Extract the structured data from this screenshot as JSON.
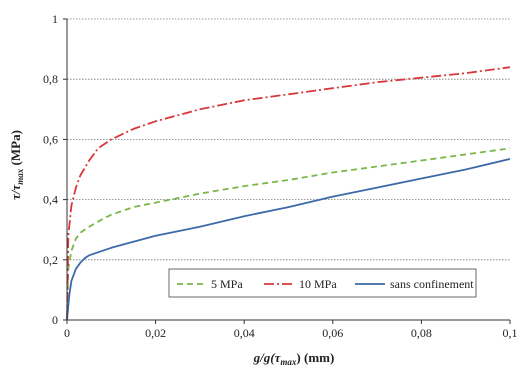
{
  "chart_data": {
    "type": "line",
    "xlabel_main": "g/g(τ",
    "xlabel_sub": "max",
    "xlabel_tail": ") (mm)",
    "ylabel_main": "τ/τ",
    "ylabel_sub": "max",
    "ylabel_tail": " (MPa)",
    "xlim": [
      0,
      0.1
    ],
    "ylim": [
      0,
      1
    ],
    "x_ticks": [
      {
        "v": 0,
        "label": "0"
      },
      {
        "v": 0.02,
        "label": "0,02"
      },
      {
        "v": 0.04,
        "label": "0,04"
      },
      {
        "v": 0.06,
        "label": "0,06"
      },
      {
        "v": 0.08,
        "label": "0,08"
      },
      {
        "v": 0.1,
        "label": "0,1"
      }
    ],
    "y_ticks": [
      {
        "v": 0,
        "label": "0"
      },
      {
        "v": 0.2,
        "label": "0,2"
      },
      {
        "v": 0.4,
        "label": "0,4"
      },
      {
        "v": 0.6,
        "label": "0,6"
      },
      {
        "v": 0.8,
        "label": "0,8"
      },
      {
        "v": 1,
        "label": "1"
      }
    ],
    "grid": "horizontal-dotted",
    "legend_position": "bottom-right-inside",
    "series": [
      {
        "name": "5 MPa",
        "color": "#7ab648",
        "dash": "dashed",
        "x": [
          0,
          0.0003,
          0.001,
          0.002,
          0.003,
          0.005,
          0.008,
          0.01,
          0.015,
          0.02,
          0.03,
          0.04,
          0.05,
          0.06,
          0.07,
          0.08,
          0.09,
          0.1
        ],
        "y": [
          0,
          0.17,
          0.23,
          0.27,
          0.29,
          0.31,
          0.335,
          0.35,
          0.375,
          0.39,
          0.42,
          0.445,
          0.465,
          0.49,
          0.51,
          0.53,
          0.55,
          0.57
        ]
      },
      {
        "name": "10 MPa",
        "color": "#d9383a",
        "dash": "dashdot",
        "x": [
          0,
          0.0003,
          0.001,
          0.002,
          0.003,
          0.005,
          0.007,
          0.01,
          0.015,
          0.02,
          0.03,
          0.04,
          0.05,
          0.06,
          0.07,
          0.08,
          0.09,
          0.1
        ],
        "y": [
          0,
          0.28,
          0.38,
          0.44,
          0.48,
          0.53,
          0.57,
          0.6,
          0.635,
          0.66,
          0.7,
          0.73,
          0.75,
          0.77,
          0.79,
          0.805,
          0.82,
          0.84
        ]
      },
      {
        "name": "sans confinement",
        "color": "#3c6aa8",
        "dash": "solid",
        "x": [
          0,
          0.0005,
          0.001,
          0.002,
          0.003,
          0.004,
          0.005,
          0.007,
          0.01,
          0.015,
          0.02,
          0.03,
          0.04,
          0.05,
          0.06,
          0.07,
          0.08,
          0.09,
          0.1
        ],
        "y": [
          0,
          0.08,
          0.13,
          0.17,
          0.19,
          0.205,
          0.215,
          0.225,
          0.24,
          0.26,
          0.28,
          0.31,
          0.345,
          0.375,
          0.41,
          0.44,
          0.47,
          0.5,
          0.535
        ]
      }
    ]
  }
}
